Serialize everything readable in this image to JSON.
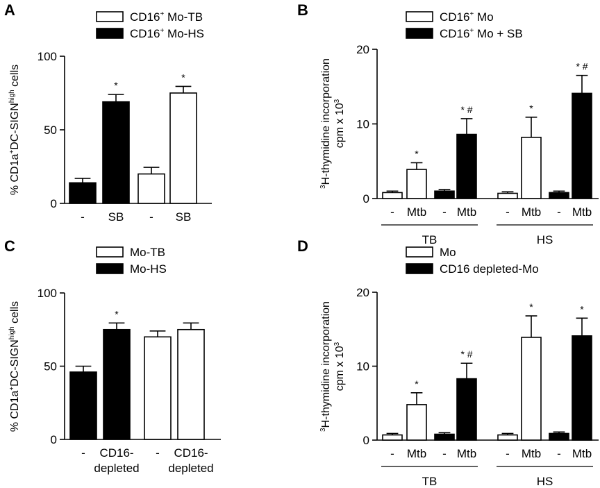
{
  "colors": {
    "filled": "#000000",
    "open": "#ffffff",
    "stroke": "#000000"
  },
  "chart_data": [
    {
      "panel": "A",
      "type": "bar",
      "ylabel_main": "% CD1a",
      "ylabel_sup1": "+",
      "ylabel_mid": "DC-SIGN",
      "ylabel_sup2": "high",
      "ylabel_end": " cells",
      "ylim": [
        0,
        100
      ],
      "yticks": [
        0,
        50,
        100
      ],
      "legend": [
        {
          "main": "CD16",
          "sup": "+",
          "rest": " Mo-TB",
          "fill": "open"
        },
        {
          "main": "CD16",
          "sup": "+",
          "rest": " Mo-HS",
          "fill": "filled"
        }
      ],
      "bars": [
        {
          "label": "-",
          "label2": "",
          "value": 14,
          "err": 3,
          "fill": "filled",
          "mark": ""
        },
        {
          "label": "SB",
          "label2": "",
          "value": 69,
          "err": 5,
          "fill": "filled",
          "mark": "*"
        },
        {
          "label": "-",
          "label2": "",
          "value": 20,
          "err": 4.5,
          "fill": "open",
          "mark": ""
        },
        {
          "label": "SB",
          "label2": "",
          "value": 75,
          "err": 4.5,
          "fill": "open",
          "mark": "*"
        }
      ],
      "groups": []
    },
    {
      "panel": "B",
      "type": "bar",
      "ylabel_main": "H-thymidine incorporation",
      "ylabel_pre": "3",
      "ylabel_line2": "cpm x 10",
      "ylabel_sup": "3",
      "ylim": [
        0,
        20
      ],
      "yticks": [
        0,
        10,
        20
      ],
      "legend": [
        {
          "main": "CD16",
          "sup": "+",
          "rest": " Mo",
          "fill": "open"
        },
        {
          "main": "CD16",
          "sup": "+",
          "rest": " Mo + SB",
          "fill": "filled"
        }
      ],
      "bars": [
        {
          "label": "-",
          "value": 0.8,
          "err": 0.2,
          "fill": "open",
          "mark": ""
        },
        {
          "label": "Mtb",
          "value": 3.9,
          "err": 0.9,
          "fill": "open",
          "mark": "*"
        },
        {
          "label": "-",
          "value": 1.0,
          "err": 0.2,
          "fill": "filled",
          "mark": ""
        },
        {
          "label": "Mtb",
          "value": 8.6,
          "err": 2.1,
          "fill": "filled",
          "mark": "* #"
        },
        {
          "label": "-",
          "value": 0.7,
          "err": 0.2,
          "fill": "open",
          "mark": ""
        },
        {
          "label": "Mtb",
          "value": 8.2,
          "err": 2.7,
          "fill": "open",
          "mark": "*"
        },
        {
          "label": "-",
          "value": 0.8,
          "err": 0.2,
          "fill": "filled",
          "mark": ""
        },
        {
          "label": "Mtb",
          "value": 14.1,
          "err": 2.4,
          "fill": "filled",
          "mark": "* #"
        }
      ],
      "groups": [
        {
          "label": "TB",
          "from": 0,
          "to": 3
        },
        {
          "label": "HS",
          "from": 4,
          "to": 7
        }
      ]
    },
    {
      "panel": "C",
      "type": "bar",
      "ylabel_main": "% CD1a",
      "ylabel_sup1": "+",
      "ylabel_mid": "DC-SIGN",
      "ylabel_sup2": "high",
      "ylabel_end": " cells",
      "ylim": [
        0,
        100
      ],
      "yticks": [
        0,
        50,
        100
      ],
      "legend": [
        {
          "main": "Mo-TB",
          "sup": "",
          "rest": "",
          "fill": "open"
        },
        {
          "main": "Mo-HS",
          "sup": "",
          "rest": "",
          "fill": "filled"
        }
      ],
      "bars": [
        {
          "label": "-",
          "label2": "",
          "value": 46,
          "err": 4,
          "fill": "filled",
          "mark": ""
        },
        {
          "label": "CD16-",
          "label2": "depleted",
          "value": 75,
          "err": 4.5,
          "fill": "filled",
          "mark": "*"
        },
        {
          "label": "-",
          "label2": "",
          "value": 70,
          "err": 4,
          "fill": "open",
          "mark": ""
        },
        {
          "label": "CD16-",
          "label2": "depleted",
          "value": 75,
          "err": 4.5,
          "fill": "open",
          "mark": ""
        }
      ],
      "groups": []
    },
    {
      "panel": "D",
      "type": "bar",
      "ylabel_main": "H-thymidine incorporation",
      "ylabel_pre": "3",
      "ylabel_line2": "cpm x 10",
      "ylabel_sup": "3",
      "ylim": [
        0,
        20
      ],
      "yticks": [
        0,
        10,
        20
      ],
      "legend": [
        {
          "main": "Mo",
          "sup": "",
          "rest": "",
          "fill": "open"
        },
        {
          "main": "CD16 depleted-Mo",
          "sup": "",
          "rest": "",
          "fill": "filled"
        }
      ],
      "bars": [
        {
          "label": "-",
          "value": 0.7,
          "err": 0.2,
          "fill": "open",
          "mark": ""
        },
        {
          "label": "Mtb",
          "value": 4.8,
          "err": 1.6,
          "fill": "open",
          "mark": "*"
        },
        {
          "label": "-",
          "value": 0.8,
          "err": 0.2,
          "fill": "filled",
          "mark": ""
        },
        {
          "label": "Mtb",
          "value": 8.3,
          "err": 2.1,
          "fill": "filled",
          "mark": "* #"
        },
        {
          "label": "-",
          "value": 0.7,
          "err": 0.2,
          "fill": "open",
          "mark": ""
        },
        {
          "label": "Mtb",
          "value": 13.9,
          "err": 2.9,
          "fill": "open",
          "mark": "*"
        },
        {
          "label": "-",
          "value": 0.9,
          "err": 0.2,
          "fill": "filled",
          "mark": ""
        },
        {
          "label": "Mtb",
          "value": 14.1,
          "err": 2.4,
          "fill": "filled",
          "mark": "*"
        }
      ],
      "groups": [
        {
          "label": "TB",
          "from": 0,
          "to": 3
        },
        {
          "label": "HS",
          "from": 4,
          "to": 7
        }
      ]
    }
  ]
}
